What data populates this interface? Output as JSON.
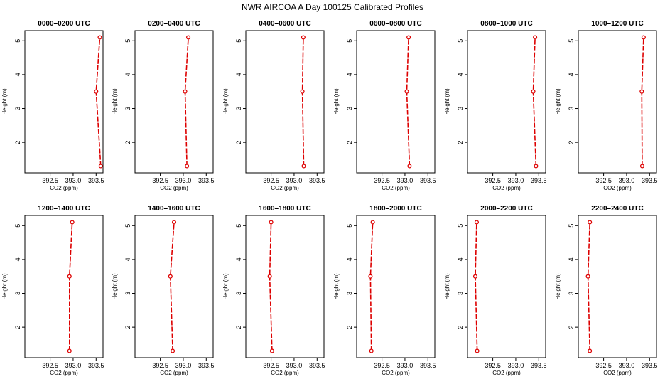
{
  "figure_title": "NWR AIRCOA A  Day 100125  Calibrated Profiles",
  "series_color": "#dd0000",
  "chart_data": [
    {
      "type": "line",
      "title": "0000–0200 UTC",
      "xlabel": "CO2 (ppm)",
      "ylabel": "Height (m)",
      "xlim": [
        391.95,
        393.65
      ],
      "ylim": [
        1.1,
        5.3
      ],
      "xticks": [
        "392.5",
        "393.0",
        "393.5"
      ],
      "yticks": [
        "2",
        "3",
        "4",
        "5"
      ],
      "x": [
        393.6,
        393.5,
        393.58
      ],
      "y": [
        1.3,
        3.5,
        5.1
      ]
    },
    {
      "type": "line",
      "title": "0200–0400 UTC",
      "xlabel": "CO2 (ppm)",
      "ylabel": "Height (m)",
      "xlim": [
        391.95,
        393.65
      ],
      "ylim": [
        1.1,
        5.3
      ],
      "xticks": [
        "392.5",
        "393.0",
        "393.5"
      ],
      "yticks": [
        "2",
        "3",
        "4",
        "5"
      ],
      "x": [
        393.08,
        393.04,
        393.11
      ],
      "y": [
        1.3,
        3.5,
        5.1
      ]
    },
    {
      "type": "line",
      "title": "0400–0600 UTC",
      "xlabel": "CO2 (ppm)",
      "ylabel": "Height (m)",
      "xlim": [
        391.95,
        393.65
      ],
      "ylim": [
        1.1,
        5.3
      ],
      "xticks": [
        "392.5",
        "393.0",
        "393.5"
      ],
      "yticks": [
        "2",
        "3",
        "4",
        "5"
      ],
      "x": [
        393.21,
        393.18,
        393.2
      ],
      "y": [
        1.3,
        3.5,
        5.1
      ]
    },
    {
      "type": "line",
      "title": "0600–0800 UTC",
      "xlabel": "CO2 (ppm)",
      "ylabel": "Height (m)",
      "xlim": [
        391.95,
        393.65
      ],
      "ylim": [
        1.1,
        5.3
      ],
      "xticks": [
        "392.5",
        "393.0",
        "393.5"
      ],
      "yticks": [
        "2",
        "3",
        "4",
        "5"
      ],
      "x": [
        393.1,
        393.04,
        393.08
      ],
      "y": [
        1.3,
        3.5,
        5.1
      ]
    },
    {
      "type": "line",
      "title": "0800–1000 UTC",
      "xlabel": "CO2 (ppm)",
      "ylabel": "Height (m)",
      "xlim": [
        391.95,
        393.65
      ],
      "ylim": [
        1.1,
        5.3
      ],
      "xticks": [
        "392.5",
        "393.0",
        "393.5"
      ],
      "yticks": [
        "2",
        "3",
        "4",
        "5"
      ],
      "x": [
        393.44,
        393.38,
        393.42
      ],
      "y": [
        1.3,
        3.5,
        5.1
      ]
    },
    {
      "type": "line",
      "title": "1000–1200 UTC",
      "xlabel": "CO2 (ppm)",
      "ylabel": "Height (m)",
      "xlim": [
        391.95,
        393.65
      ],
      "ylim": [
        1.1,
        5.3
      ],
      "xticks": [
        "392.5",
        "393.0",
        "393.5"
      ],
      "yticks": [
        "2",
        "3",
        "4",
        "5"
      ],
      "x": [
        393.34,
        393.33,
        393.37
      ],
      "y": [
        1.3,
        3.5,
        5.1
      ]
    },
    {
      "type": "line",
      "title": "1200–1400 UTC",
      "xlabel": "CO2 (ppm)",
      "ylabel": "Height (m)",
      "xlim": [
        391.95,
        393.65
      ],
      "ylim": [
        1.1,
        5.3
      ],
      "xticks": [
        "392.5",
        "393.0",
        "393.5"
      ],
      "yticks": [
        "2",
        "3",
        "4",
        "5"
      ],
      "x": [
        392.92,
        392.92,
        392.98
      ],
      "y": [
        1.3,
        3.5,
        5.1
      ]
    },
    {
      "type": "line",
      "title": "1400–1600 UTC",
      "xlabel": "CO2 (ppm)",
      "ylabel": "Height (m)",
      "xlim": [
        391.95,
        393.65
      ],
      "ylim": [
        1.1,
        5.3
      ],
      "xticks": [
        "392.5",
        "393.0",
        "393.5"
      ],
      "yticks": [
        "2",
        "3",
        "4",
        "5"
      ],
      "x": [
        392.77,
        392.72,
        392.8
      ],
      "y": [
        1.3,
        3.5,
        5.1
      ]
    },
    {
      "type": "line",
      "title": "1600–1800 UTC",
      "xlabel": "CO2 (ppm)",
      "ylabel": "Height (m)",
      "xlim": [
        391.95,
        393.65
      ],
      "ylim": [
        1.1,
        5.3
      ],
      "xticks": [
        "392.5",
        "393.0",
        "393.5"
      ],
      "yticks": [
        "2",
        "3",
        "4",
        "5"
      ],
      "x": [
        392.52,
        392.47,
        392.5
      ],
      "y": [
        1.3,
        3.5,
        5.1
      ]
    },
    {
      "type": "line",
      "title": "1800–2000 UTC",
      "xlabel": "CO2 (ppm)",
      "ylabel": "Height (m)",
      "xlim": [
        391.95,
        393.65
      ],
      "ylim": [
        1.1,
        5.3
      ],
      "xticks": [
        "392.5",
        "393.0",
        "393.5"
      ],
      "yticks": [
        "2",
        "3",
        "4",
        "5"
      ],
      "x": [
        392.27,
        392.25,
        392.3
      ],
      "y": [
        1.3,
        3.5,
        5.1
      ]
    },
    {
      "type": "line",
      "title": "2000–2200 UTC",
      "xlabel": "CO2 (ppm)",
      "ylabel": "Height (m)",
      "xlim": [
        391.95,
        393.65
      ],
      "ylim": [
        1.1,
        5.3
      ],
      "xticks": [
        "392.5",
        "393.0",
        "393.5"
      ],
      "yticks": [
        "2",
        "3",
        "4",
        "5"
      ],
      "x": [
        392.16,
        392.12,
        392.15
      ],
      "y": [
        1.3,
        3.5,
        5.1
      ]
    },
    {
      "type": "line",
      "title": "2200–2400 UTC",
      "xlabel": "CO2 (ppm)",
      "ylabel": "Height (m)",
      "xlim": [
        391.95,
        393.65
      ],
      "ylim": [
        1.1,
        5.3
      ],
      "xticks": [
        "392.5",
        "393.0",
        "393.5"
      ],
      "yticks": [
        "2",
        "3",
        "4",
        "5"
      ],
      "x": [
        392.2,
        392.16,
        392.2
      ],
      "y": [
        1.3,
        3.5,
        5.1
      ]
    }
  ]
}
